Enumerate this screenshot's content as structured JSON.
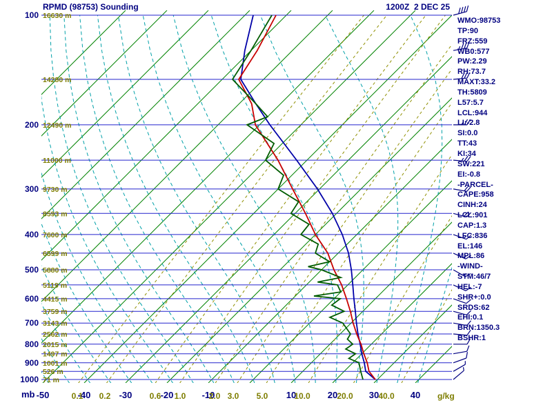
{
  "header": {
    "title": "RPMD (98753) Sounding",
    "datetime": "1200Z  2 DEC 25"
  },
  "colors": {
    "navy": "#000080",
    "olive": "#7d7d00",
    "isobar": "#2323cd",
    "isotherm": "#008200",
    "moist_adiabat": "#00a0a8",
    "mixing_ratio": "#8f8f00",
    "temperature": "#c80000",
    "dewpoint": "#005c00",
    "parcel": "#0000a8",
    "wind": "#000080"
  },
  "indices": [
    "WMO:98753",
    "TP:90",
    "FRZ:559",
    "WB0:577",
    "PW:2.29",
    "RH:73.7",
    "MAXT:33.2",
    "TH:5809",
    "L57:5.7",
    "LCL:944",
    "LI:-2.8",
    "SI:0.0",
    "TT:43",
    "KI:34",
    "SW:221",
    "EI:-0.8",
    "-PARCEL-",
    "CAPE:958",
    "CINH:24",
    "LCL:901",
    "CAP:1.3",
    "LFC:836",
    "EL:146",
    "MPL:86",
    "-WIND-",
    "STM:46/7",
    "HEL:-7",
    "SHR+:0.0",
    "SRDS:62",
    "EHI:0.1",
    "BRN:1350.3",
    "BSHR:1"
  ],
  "chart_data": {
    "type": "line",
    "subtype": "skew-t log-p sounding",
    "station": "RPMD 98753",
    "valid": "1200Z 2 DEC 25",
    "pressure_axis_mb": [
      100,
      200,
      300,
      400,
      500,
      600,
      700,
      800,
      900,
      1000
    ],
    "pressure_unit": "mb",
    "temp_axis_c": [
      -50,
      -40,
      -30,
      -20,
      -10,
      10,
      20,
      30,
      40
    ],
    "isobar_lines_mb": {
      "min": 100,
      "max": 1000,
      "step": 50
    },
    "isotherm_lines_c": {
      "min": -120,
      "max": 40,
      "step": 10
    },
    "moist_adiabats_c_at_1000mb": {
      "min": -60,
      "max": 40,
      "step": 5
    },
    "mixing_ratio_lines_gkg": [
      0.1,
      0.2,
      0.6,
      1.0,
      2.0,
      3.0,
      5.0,
      10.0,
      20.0,
      40.0
    ],
    "mixing_ratio_unit": "g/kg",
    "mixing_ratio_label_x": {
      "0.1": 112,
      "0.2": 152,
      "0.6": 225,
      "1.0": 261,
      "2.0": 311,
      "3.0": 338,
      "5.0": 380,
      "10.0": 438,
      "20.0": 500,
      "40.0": 560
    },
    "heights": [
      [
        100,
        "16630 m"
      ],
      [
        150,
        "14280 m"
      ],
      [
        200,
        "12490 m"
      ],
      [
        250,
        "11000 m"
      ],
      [
        300,
        "9730 m"
      ],
      [
        350,
        "8593 m"
      ],
      [
        400,
        "7600 m"
      ],
      [
        450,
        "6599 m"
      ],
      [
        500,
        "5880 m"
      ],
      [
        550,
        "5119 m"
      ],
      [
        600,
        "4415 m"
      ],
      [
        650,
        "3759 m"
      ],
      [
        700,
        "3143 m"
      ],
      [
        750,
        "2562 m"
      ],
      [
        800,
        "2015 m"
      ],
      [
        850,
        "1497 m"
      ],
      [
        900,
        "1001 m"
      ],
      [
        950,
        "526 m"
      ],
      [
        1000,
        "71 m"
      ]
    ],
    "temperature_profile_p_t": [
      [
        1000,
        29.5
      ],
      [
        950,
        26
      ],
      [
        900,
        23.5
      ],
      [
        850,
        20.5
      ],
      [
        800,
        17.5
      ],
      [
        750,
        14
      ],
      [
        700,
        10.5
      ],
      [
        650,
        7
      ],
      [
        600,
        3
      ],
      [
        550,
        -1.5
      ],
      [
        500,
        -7
      ],
      [
        450,
        -12.5
      ],
      [
        400,
        -20
      ],
      [
        350,
        -27.5
      ],
      [
        300,
        -36.5
      ],
      [
        250,
        -47
      ],
      [
        200,
        -61
      ],
      [
        175,
        -67
      ],
      [
        150,
        -76
      ],
      [
        125,
        -78.5
      ],
      [
        100,
        -82.5
      ]
    ],
    "dewpoint_profile_p_t": [
      [
        1000,
        26.5
      ],
      [
        950,
        24
      ],
      [
        900,
        21.5
      ],
      [
        875,
        18
      ],
      [
        850,
        18.5
      ],
      [
        825,
        15
      ],
      [
        800,
        15.5
      ],
      [
        775,
        13
      ],
      [
        750,
        12.5
      ],
      [
        700,
        8
      ],
      [
        675,
        3.5
      ],
      [
        650,
        5.5
      ],
      [
        625,
        1
      ],
      [
        600,
        1.5
      ],
      [
        590,
        -5.5
      ],
      [
        575,
        0
      ],
      [
        550,
        -2.5
      ],
      [
        540,
        -8
      ],
      [
        525,
        -3.5
      ],
      [
        500,
        -10
      ],
      [
        490,
        -14
      ],
      [
        475,
        -10
      ],
      [
        450,
        -15.5
      ],
      [
        425,
        -17
      ],
      [
        400,
        -23.5
      ],
      [
        375,
        -24
      ],
      [
        350,
        -31
      ],
      [
        325,
        -32
      ],
      [
        300,
        -40
      ],
      [
        275,
        -42
      ],
      [
        250,
        -50
      ],
      [
        225,
        -52
      ],
      [
        200,
        -63
      ],
      [
        190,
        -60
      ],
      [
        175,
        -66
      ],
      [
        150,
        -77.5
      ],
      [
        125,
        -80
      ],
      [
        100,
        -83.5
      ]
    ],
    "parcel_profile_p_t": [
      [
        1000,
        29.5
      ],
      [
        950,
        25.2
      ],
      [
        900,
        22.8
      ],
      [
        850,
        20
      ],
      [
        800,
        17.3
      ],
      [
        750,
        14.3
      ],
      [
        700,
        11.3
      ],
      [
        650,
        8.2
      ],
      [
        600,
        4.8
      ],
      [
        550,
        1.2
      ],
      [
        500,
        -2.8
      ],
      [
        450,
        -7.5
      ],
      [
        400,
        -13.5
      ],
      [
        350,
        -21
      ],
      [
        300,
        -30.5
      ],
      [
        250,
        -42.5
      ],
      [
        200,
        -57.5
      ],
      [
        175,
        -66
      ],
      [
        150,
        -75.5
      ],
      [
        125,
        -81.5
      ],
      [
        100,
        -88
      ]
    ],
    "winds_p_dir_spd": [
      [
        1000,
        50,
        5
      ],
      [
        950,
        60,
        5
      ],
      [
        900,
        70,
        10
      ],
      [
        850,
        80,
        10
      ],
      [
        800,
        90,
        10
      ],
      [
        750,
        95,
        10
      ],
      [
        700,
        100,
        12
      ],
      [
        650,
        105,
        10
      ],
      [
        600,
        110,
        10
      ],
      [
        550,
        115,
        10
      ],
      [
        500,
        120,
        15
      ],
      [
        450,
        115,
        15
      ],
      [
        400,
        110,
        15
      ],
      [
        350,
        105,
        20
      ],
      [
        300,
        100,
        20
      ],
      [
        250,
        95,
        25
      ],
      [
        200,
        90,
        25
      ],
      [
        150,
        85,
        30
      ],
      [
        125,
        80,
        35
      ],
      [
        100,
        75,
        40
      ]
    ]
  }
}
